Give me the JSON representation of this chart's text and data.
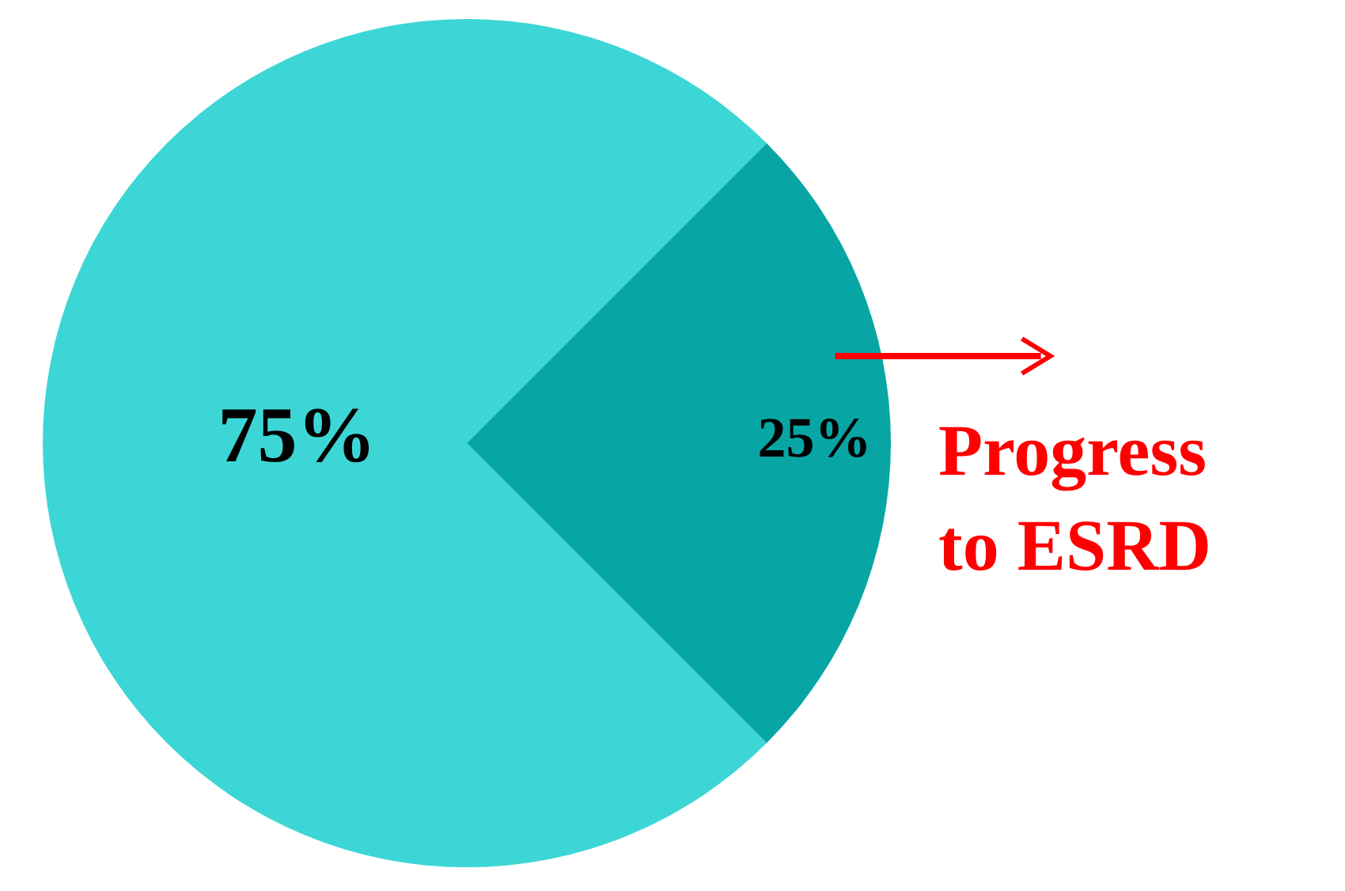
{
  "chart_data": {
    "type": "pie",
    "categories": [
      null,
      "Progress to ESRD"
    ],
    "values": [
      75,
      25
    ],
    "colors": [
      "#3dd6d6",
      "#08a5a5"
    ],
    "value_labels": [
      "75%",
      "25%"
    ]
  }
}
